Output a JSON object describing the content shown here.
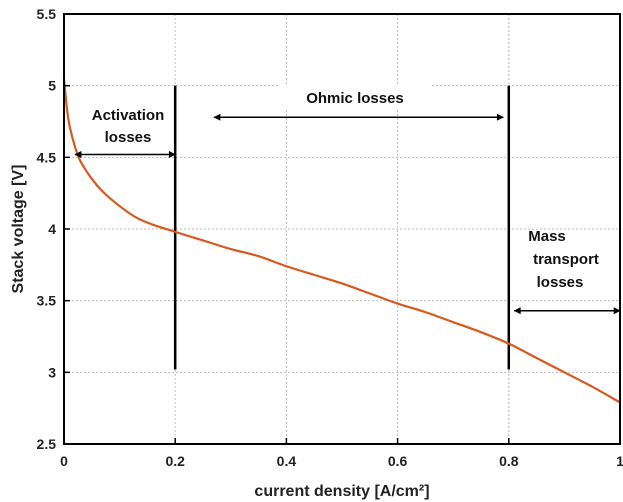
{
  "chart_data": {
    "type": "line",
    "title": "",
    "xlabel": "current density [A/cm²]",
    "ylabel": "Stack voltage [V]",
    "xlim": [
      0,
      1
    ],
    "ylim": [
      2.5,
      5.5
    ],
    "grid": true,
    "xticks": [
      "0",
      "0.2",
      "0.4",
      "0.6",
      "0.8",
      "1"
    ],
    "yticks": [
      "2.5",
      "3",
      "3.5",
      "4",
      "4.5",
      "5",
      "5.5"
    ],
    "series": [
      {
        "color": "#d9581e",
        "x": [
          0.0,
          0.005,
          0.01,
          0.02,
          0.03,
          0.05,
          0.07,
          0.1,
          0.13,
          0.16,
          0.2,
          0.25,
          0.3,
          0.35,
          0.4,
          0.45,
          0.5,
          0.55,
          0.6,
          0.65,
          0.7,
          0.75,
          0.8,
          0.85,
          0.9,
          0.95,
          1.0
        ],
        "y": [
          5.05,
          4.85,
          4.72,
          4.57,
          4.47,
          4.35,
          4.26,
          4.16,
          4.08,
          4.03,
          3.98,
          3.92,
          3.86,
          3.81,
          3.74,
          3.68,
          3.62,
          3.55,
          3.48,
          3.42,
          3.35,
          3.28,
          3.2,
          3.1,
          3.0,
          2.9,
          2.79
        ]
      }
    ],
    "annotations": {
      "activation": {
        "line1": "Activation",
        "line2": "losses",
        "arrow_x": [
          0.02,
          0.2
        ],
        "arrow_y": 4.52
      },
      "ohmic": {
        "label": "Ohmic losses",
        "arrow_x": [
          0.27,
          0.79
        ],
        "arrow_y": 4.78
      },
      "mass": {
        "line1": "Mass",
        "line2": "transport",
        "line3": "losses",
        "arrow_x": [
          0.81,
          1.0
        ],
        "arrow_y": 3.43
      },
      "dividers": [
        {
          "x": 0.2,
          "y": [
            3.02,
            5.0
          ]
        },
        {
          "x": 0.8,
          "y": [
            3.02,
            5.0
          ]
        }
      ]
    }
  }
}
